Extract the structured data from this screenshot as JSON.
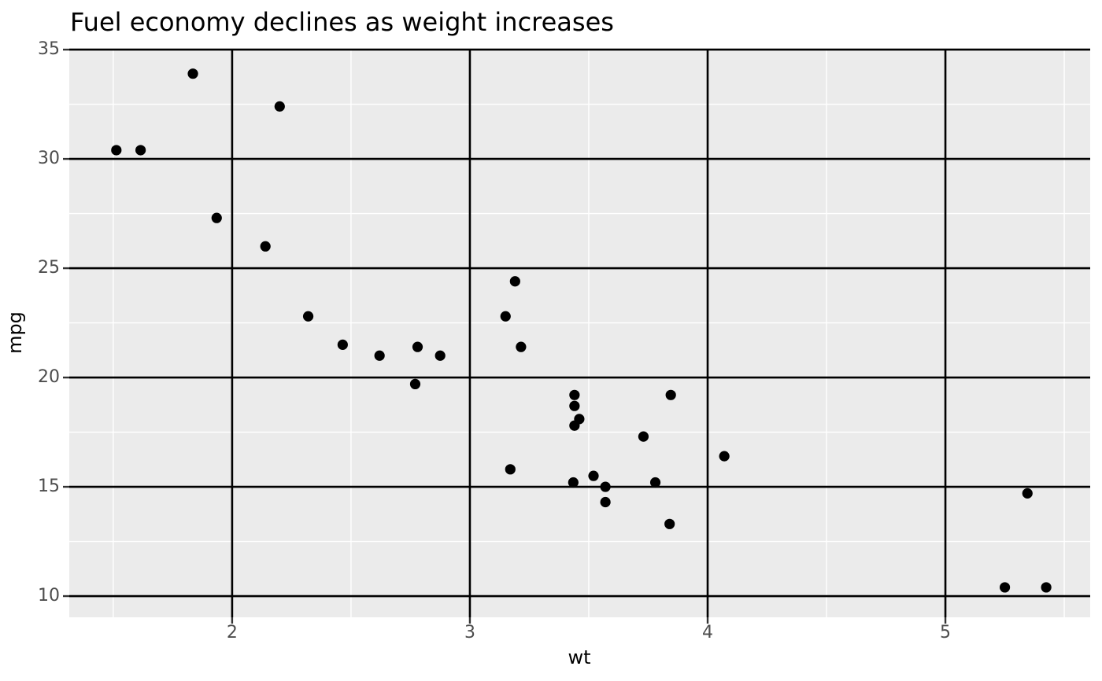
{
  "title": "Fuel economy declines as weight increases",
  "theme": {
    "panel_background": "#EBEBEB",
    "grid_major_color": "#000000",
    "grid_minor_color": "#FFFFFF",
    "tick_mark_color": "#333333",
    "tick_label_color": "#4D4D4D",
    "axis_title_color": "#000000",
    "title_color": "#000000",
    "point_color": "#000000"
  },
  "chart_data": {
    "type": "scatter",
    "title": "Fuel economy declines as weight increases",
    "xlabel": "wt",
    "ylabel": "mpg",
    "xlim": [
      1.315,
      5.609
    ],
    "ylim": [
      9.03,
      35.04
    ],
    "x_ticks": [
      2,
      3,
      4,
      5
    ],
    "y_ticks": [
      35,
      30,
      25,
      20,
      15,
      10
    ],
    "x_minor_ticks": [
      1.5,
      2.5,
      3.5,
      4.5,
      5.5
    ],
    "y_minor_ticks": [
      12.5,
      17.5,
      22.5,
      27.5,
      32.5
    ],
    "grid": "major-black-minor-white",
    "legend": false,
    "point_radius": 6.6,
    "points": [
      {
        "wt": 2.62,
        "mpg": 21.0
      },
      {
        "wt": 2.875,
        "mpg": 21.0
      },
      {
        "wt": 2.32,
        "mpg": 22.8
      },
      {
        "wt": 3.215,
        "mpg": 21.4
      },
      {
        "wt": 3.44,
        "mpg": 18.7
      },
      {
        "wt": 3.46,
        "mpg": 18.1
      },
      {
        "wt": 3.57,
        "mpg": 14.3
      },
      {
        "wt": 3.19,
        "mpg": 24.4
      },
      {
        "wt": 3.15,
        "mpg": 22.8
      },
      {
        "wt": 3.44,
        "mpg": 19.2
      },
      {
        "wt": 3.44,
        "mpg": 17.8
      },
      {
        "wt": 4.07,
        "mpg": 16.4
      },
      {
        "wt": 3.73,
        "mpg": 17.3
      },
      {
        "wt": 3.78,
        "mpg": 15.2
      },
      {
        "wt": 5.25,
        "mpg": 10.4
      },
      {
        "wt": 5.424,
        "mpg": 10.4
      },
      {
        "wt": 5.345,
        "mpg": 14.7
      },
      {
        "wt": 2.2,
        "mpg": 32.4
      },
      {
        "wt": 1.615,
        "mpg": 30.4
      },
      {
        "wt": 1.835,
        "mpg": 33.9
      },
      {
        "wt": 2.465,
        "mpg": 21.5
      },
      {
        "wt": 3.52,
        "mpg": 15.5
      },
      {
        "wt": 3.435,
        "mpg": 15.2
      },
      {
        "wt": 3.84,
        "mpg": 13.3
      },
      {
        "wt": 3.845,
        "mpg": 19.2
      },
      {
        "wt": 1.935,
        "mpg": 27.3
      },
      {
        "wt": 2.14,
        "mpg": 26.0
      },
      {
        "wt": 1.513,
        "mpg": 30.4
      },
      {
        "wt": 3.17,
        "mpg": 15.8
      },
      {
        "wt": 2.77,
        "mpg": 19.7
      },
      {
        "wt": 3.57,
        "mpg": 15.0
      },
      {
        "wt": 2.78,
        "mpg": 21.4
      }
    ]
  }
}
